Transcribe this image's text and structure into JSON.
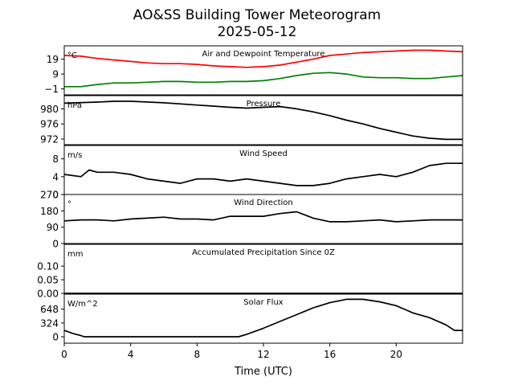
{
  "title": "AO&SS Building Tower Meteorogram",
  "subtitle": "2025-05-12",
  "xlabel": "Time (UTC)",
  "colors": {
    "temperature": "#ff0000",
    "dewpoint": "#008000",
    "line": "#000000"
  },
  "chart_data": [
    {
      "type": "line",
      "title": "Air and Dewpoint Temperature",
      "unit": "°C",
      "ylim": [
        -5,
        28
      ],
      "yticks": [
        {
          "v": -1,
          "label": "−1"
        },
        {
          "v": 9,
          "label": "9"
        },
        {
          "v": 19,
          "label": "19"
        }
      ],
      "x": [
        0,
        1,
        2,
        3,
        4,
        5,
        6,
        7,
        8,
        9,
        10,
        11,
        12,
        13,
        14,
        15,
        16,
        17,
        18,
        19,
        20,
        21,
        22,
        23,
        24
      ],
      "series": [
        {
          "name": "Air temperature",
          "color_key": "temperature",
          "values": [
            21.5,
            21,
            19.5,
            18.5,
            17.5,
            16.5,
            16,
            16,
            15.5,
            14.5,
            14,
            13.5,
            14,
            15,
            17,
            19,
            21.5,
            22.5,
            23.5,
            24,
            24.5,
            25,
            25,
            24.5,
            24
          ]
        },
        {
          "name": "Dewpoint",
          "color_key": "dewpoint",
          "values": [
            0.5,
            0.5,
            2,
            3,
            3,
            3.5,
            4,
            4,
            3.5,
            3.5,
            4,
            4,
            4.5,
            6,
            8,
            9.5,
            10,
            9,
            7,
            6.5,
            6.5,
            6,
            6,
            7,
            8
          ]
        }
      ]
    },
    {
      "type": "line",
      "title": "Pressure",
      "unit": "hPa",
      "ylim": [
        970.5,
        983.5
      ],
      "yticks": [
        {
          "v": 972,
          "label": "972"
        },
        {
          "v": 976,
          "label": "976"
        },
        {
          "v": 980,
          "label": "980"
        }
      ],
      "x": [
        0,
        2,
        3,
        4,
        6,
        8,
        10,
        11,
        12,
        13,
        14,
        15,
        16,
        17,
        18,
        19,
        20,
        21,
        22,
        23,
        24
      ],
      "series": [
        {
          "name": "Pressure",
          "color_key": "line",
          "values": [
            981.5,
            981.8,
            982.0,
            982.0,
            981.6,
            981.0,
            980.4,
            980.2,
            980.4,
            980.6,
            980.0,
            979.2,
            978.2,
            977.0,
            976.0,
            974.8,
            973.8,
            972.8,
            972.2,
            971.9,
            971.9
          ]
        }
      ]
    },
    {
      "type": "line",
      "title": "Wind Speed",
      "unit": "m/s",
      "ylim": [
        0,
        11
      ],
      "yticks": [
        {
          "v": 0,
          "label": "0"
        },
        {
          "v": 4,
          "label": "4"
        },
        {
          "v": 8,
          "label": "8"
        }
      ],
      "x": [
        0,
        1,
        1.5,
        2,
        3,
        4,
        5,
        6,
        7,
        8,
        9,
        10,
        11,
        12,
        13,
        14,
        15,
        16,
        17,
        18,
        19,
        20,
        21,
        22,
        23,
        24
      ],
      "series": [
        {
          "name": "Wind speed",
          "color_key": "line",
          "values": [
            4.5,
            4,
            5.5,
            5,
            5,
            4.5,
            3.5,
            3,
            2.5,
            3.5,
            3.5,
            3,
            3.5,
            3,
            2.5,
            2,
            2,
            2.5,
            3.5,
            4,
            4.5,
            4,
            5,
            6.5,
            7,
            7
          ]
        }
      ]
    },
    {
      "type": "line",
      "title": "Wind Direction",
      "unit": "°",
      "ylim": [
        0,
        270
      ],
      "yticks": [
        {
          "v": 0,
          "label": "0"
        },
        {
          "v": 90,
          "label": "90"
        },
        {
          "v": 180,
          "label": "180"
        },
        {
          "v": 270,
          "label": "270"
        }
      ],
      "x": [
        0,
        1,
        2,
        3,
        4,
        5,
        6,
        7,
        8,
        9,
        10,
        11,
        12,
        13,
        14,
        15,
        16,
        17,
        18,
        19,
        20,
        21,
        22,
        23,
        24
      ],
      "series": [
        {
          "name": "Wind direction",
          "color_key": "line",
          "values": [
            125,
            130,
            130,
            125,
            135,
            140,
            145,
            135,
            135,
            130,
            150,
            150,
            150,
            165,
            175,
            140,
            120,
            120,
            125,
            130,
            120,
            125,
            130,
            130,
            130
          ]
        }
      ]
    },
    {
      "type": "line",
      "title": "Accumulated Precipitation Since 0Z",
      "unit": "mm",
      "ylim": [
        0,
        0.18
      ],
      "yticks": [
        {
          "v": 0,
          "label": "0.00"
        },
        {
          "v": 0.05,
          "label": "0.05"
        },
        {
          "v": 0.1,
          "label": "0.10"
        }
      ],
      "x": [
        0,
        24
      ],
      "series": [
        {
          "name": "Precipitation",
          "color_key": "line",
          "values": [
            0,
            0
          ]
        }
      ]
    },
    {
      "type": "line",
      "title": "Solar Flux",
      "unit": "W/m^2",
      "ylim": [
        -150,
        1000
      ],
      "yticks": [
        {
          "v": 0,
          "label": "0"
        },
        {
          "v": 324,
          "label": "324"
        },
        {
          "v": 648,
          "label": "648"
        }
      ],
      "x": [
        0,
        0.5,
        1,
        1.2,
        2,
        4,
        6,
        8,
        10,
        10.5,
        11,
        12,
        13,
        14,
        15,
        16,
        17,
        18,
        19,
        20,
        21,
        22,
        23,
        23.5,
        24
      ],
      "series": [
        {
          "name": "Solar flux",
          "color_key": "line",
          "values": [
            150,
            80,
            30,
            0,
            0,
            0,
            0,
            0,
            0,
            0,
            60,
            200,
            360,
            520,
            680,
            800,
            880,
            880,
            820,
            730,
            560,
            450,
            280,
            150,
            150
          ]
        }
      ]
    }
  ],
  "x_axis": {
    "xlim": [
      0,
      24
    ],
    "ticks": [
      {
        "v": 0,
        "label": "0"
      },
      {
        "v": 4,
        "label": "4"
      },
      {
        "v": 8,
        "label": "8"
      },
      {
        "v": 12,
        "label": "12"
      },
      {
        "v": 16,
        "label": "16"
      },
      {
        "v": 20,
        "label": "20"
      }
    ]
  }
}
